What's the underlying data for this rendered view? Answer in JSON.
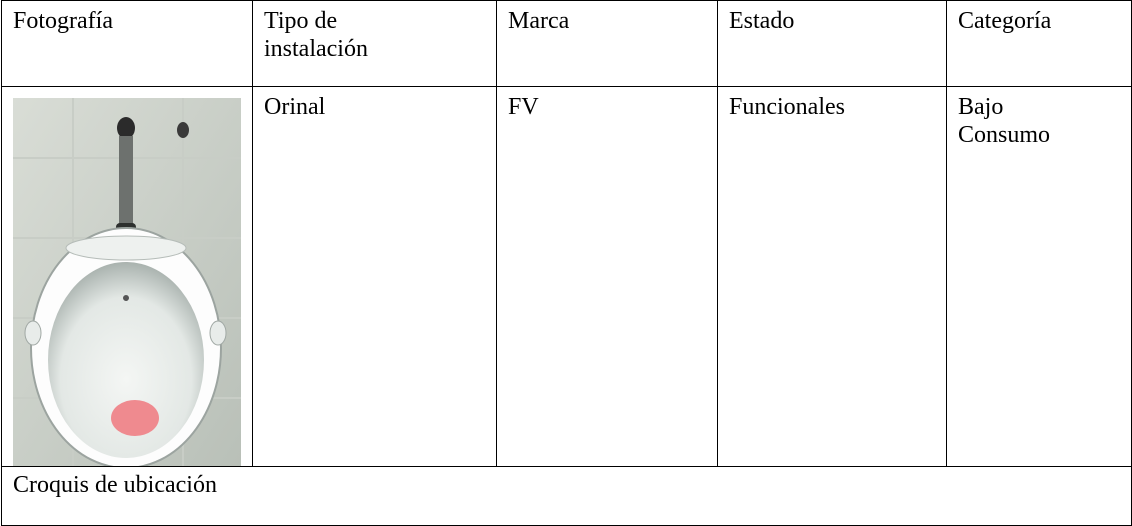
{
  "table": {
    "headers": [
      "Fotografía",
      "Tipo de instalación",
      "Marca",
      "Estado",
      "Categoría"
    ],
    "rows": [
      [
        "Orinal",
        "FV",
        "Funcionales",
        "Bajo Consumo"
      ]
    ],
    "footer": "Croquis de ubicación"
  }
}
